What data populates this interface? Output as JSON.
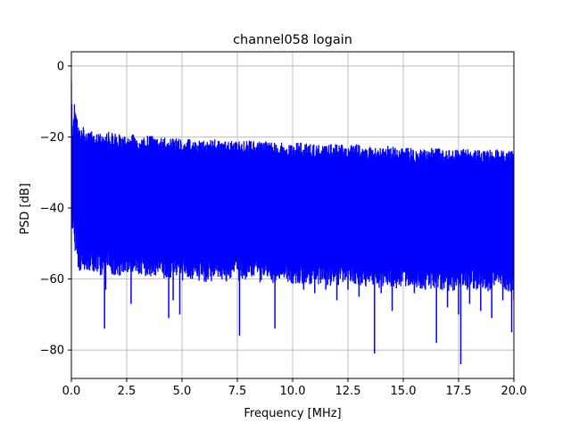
{
  "chart_data": {
    "type": "line",
    "title": "channel058 logain",
    "xlabel": "Frequency [MHz]",
    "ylabel": "PSD [dB]",
    "xlim": [
      0,
      20
    ],
    "ylim": [
      -88,
      4
    ],
    "grid": true,
    "line_color": "#0000ff",
    "x_ticks": [
      0.0,
      2.5,
      5.0,
      7.5,
      10.0,
      12.5,
      15.0,
      17.5,
      20.0
    ],
    "x_tick_labels": [
      "0.0",
      "2.5",
      "5.0",
      "7.5",
      "10.0",
      "12.5",
      "15.0",
      "17.5",
      "20.0"
    ],
    "y_ticks": [
      0,
      -20,
      -40,
      -60,
      -80
    ],
    "y_tick_labels": [
      "0",
      "−20",
      "−40",
      "−60",
      "−80"
    ],
    "series": [
      {
        "x": [
          0.0,
          0.03,
          0.06,
          0.1,
          0.13,
          0.17,
          0.2,
          0.25,
          0.3,
          0.4,
          0.5,
          0.6,
          0.8,
          1.0,
          1.2,
          1.5,
          1.55,
          2.0,
          2.5,
          2.7,
          3.0,
          3.5,
          4.0,
          4.4,
          4.6,
          4.9,
          5.0,
          5.5,
          6.0,
          6.5,
          7.0,
          7.5,
          7.6,
          8.0,
          8.5,
          9.0,
          9.2,
          9.5,
          10.0,
          10.5,
          11.0,
          11.5,
          12.0,
          12.5,
          13.0,
          13.5,
          13.7,
          14.0,
          14.5,
          15.0,
          15.5,
          16.0,
          16.5,
          17.0,
          17.5,
          17.6,
          18.0,
          18.5,
          19.0,
          19.5,
          19.9,
          20.0
        ],
        "y_upper": [
          -2,
          -11,
          -20,
          -15,
          -9,
          -13,
          -10,
          -14,
          -17,
          -18,
          -16.5,
          -18,
          -18.5,
          -18,
          -19,
          -19,
          -18,
          -19,
          -19.5,
          -19,
          -20,
          -19.5,
          -20,
          -20,
          -19.5,
          -20.5,
          -20.5,
          -20.5,
          -21,
          -20.5,
          -21,
          -20.5,
          -21,
          -21,
          -21,
          -21,
          -21.5,
          -21.5,
          -21.5,
          -21.5,
          -22,
          -22,
          -22,
          -22,
          -22,
          -22.5,
          -22.5,
          -22.5,
          -22.5,
          -23,
          -23,
          -23,
          -23,
          -23.5,
          -23.5,
          -23,
          -23.5,
          -23.5,
          -23.5,
          -23.5,
          -23.5,
          -23.5
        ],
        "y_lower": [
          -47,
          -48,
          -47,
          -45,
          -49,
          -58,
          -60,
          -59,
          -58,
          -58,
          -57,
          -60,
          -59,
          -58,
          -58,
          -74,
          -63,
          -60,
          -58,
          -67,
          -59,
          -60,
          -59,
          -71,
          -66,
          -70,
          -62,
          -60,
          -62,
          -61,
          -62,
          -59,
          -76,
          -62,
          -62,
          -60,
          -74,
          -61,
          -62,
          -63,
          -64,
          -63,
          -66,
          -63,
          -65,
          -61,
          -81,
          -64,
          -69,
          -62,
          -64,
          -63,
          -78,
          -68,
          -70,
          -84,
          -67,
          -69,
          -71,
          -66,
          -75,
          -66
        ]
      }
    ]
  }
}
